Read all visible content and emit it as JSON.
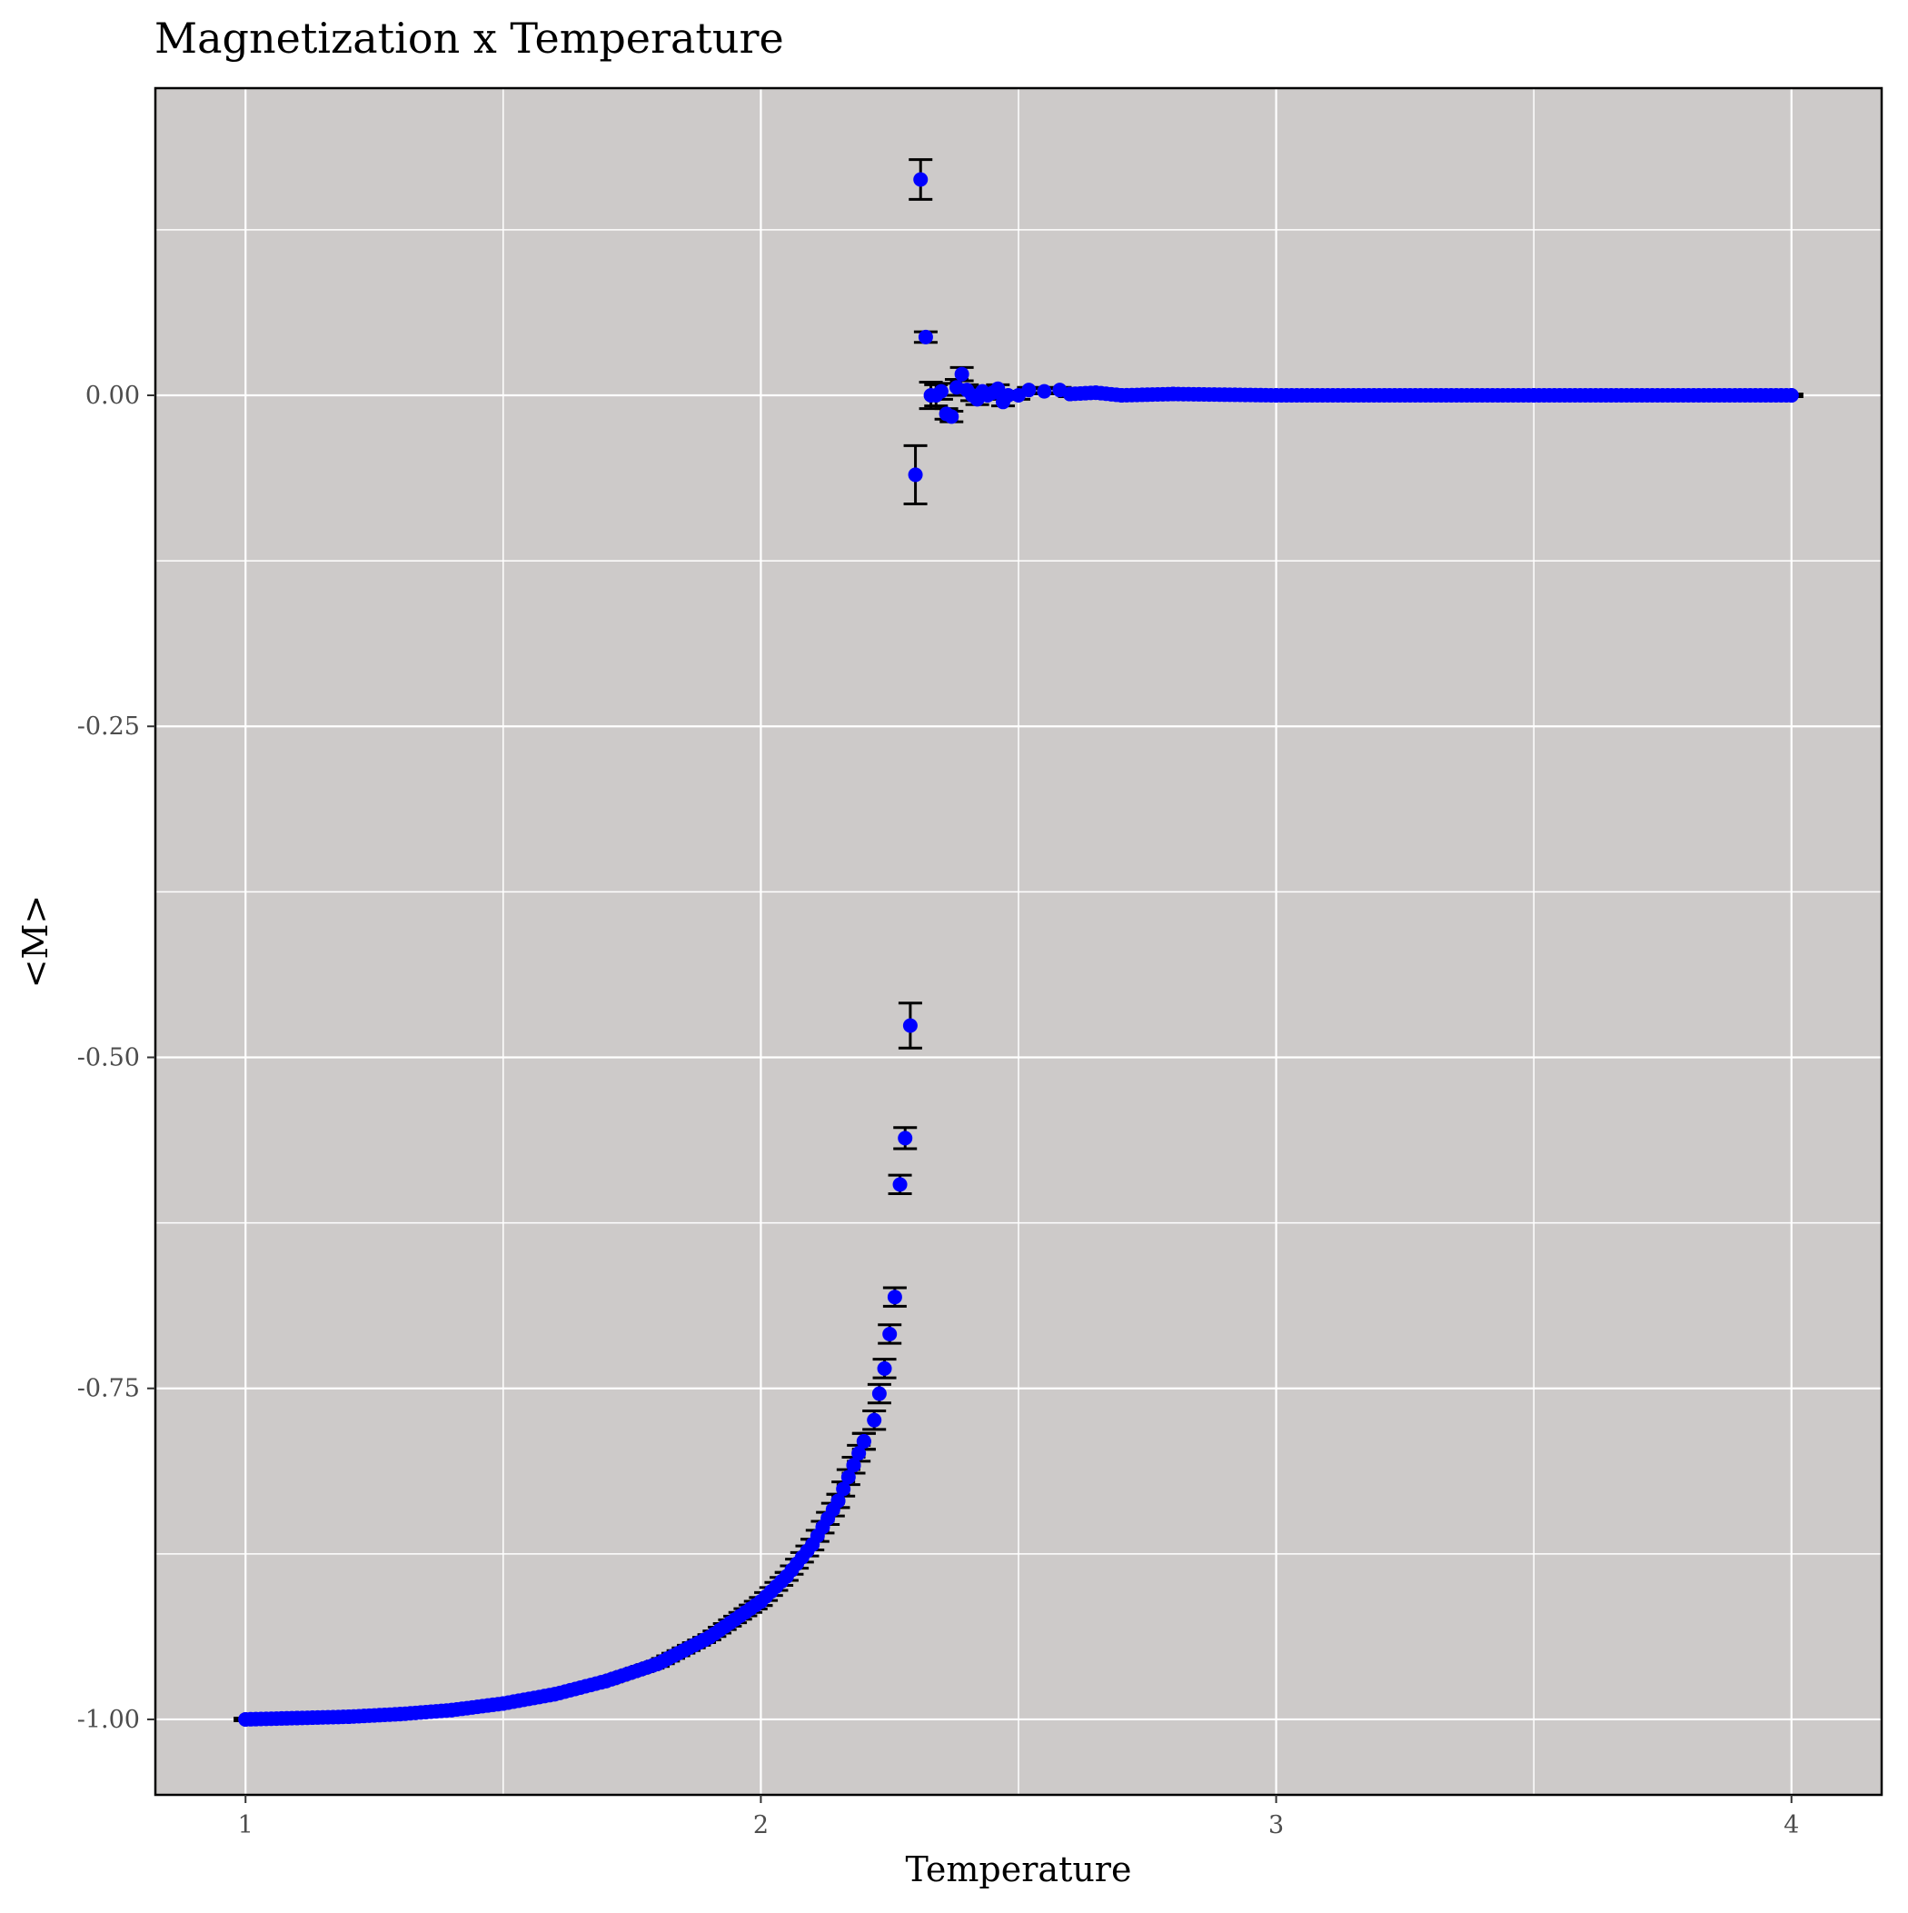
{
  "chart_data": {
    "type": "scatter",
    "title": "Magnetization x Temperature",
    "xlabel": "Temperature",
    "ylabel": "<M>",
    "xlim": [
      0.825,
      4.175
    ],
    "ylim": [
      -1.057,
      0.232
    ],
    "x_ticks": [
      1,
      2,
      3,
      4
    ],
    "x_tick_labels": [
      "1",
      "2",
      "3",
      "4"
    ],
    "y_ticks": [
      -1.0,
      -0.75,
      -0.5,
      -0.25,
      0.0
    ],
    "y_tick_labels": [
      "-1.00",
      "-0.75",
      "-0.50",
      "-0.25",
      "0.00"
    ],
    "x_minor_gridlines": [
      1.5,
      2.5,
      3.5
    ],
    "y_minor_gridlines": [
      -0.875,
      -0.625,
      -0.375,
      -0.125,
      0.125
    ],
    "grid": true,
    "legend": "none",
    "colors": {
      "panel_background": "#cdcac9",
      "grid": "#ffffff",
      "points": "#0000ff",
      "error_bars": "#000000"
    },
    "series": [
      {
        "marker": "point-with-error-bars",
        "smooth_region": {
          "description_of_points": "dense points from T=1 to T=2.2 following a smooth curve",
          "x_start": 1.0,
          "x_end": 2.2,
          "step": 0.01
        },
        "points": [
          {
            "x": 1.0,
            "y": -1.0,
            "err": 0.001
          },
          {
            "x": 1.1,
            "y": -0.999,
            "err": 0.001
          },
          {
            "x": 1.2,
            "y": -0.998,
            "err": 0.001
          },
          {
            "x": 1.3,
            "y": -0.996,
            "err": 0.001
          },
          {
            "x": 1.4,
            "y": -0.993,
            "err": 0.001
          },
          {
            "x": 1.5,
            "y": -0.988,
            "err": 0.001
          },
          {
            "x": 1.6,
            "y": -0.981,
            "err": 0.001
          },
          {
            "x": 1.7,
            "y": -0.971,
            "err": 0.002
          },
          {
            "x": 1.8,
            "y": -0.958,
            "err": 0.002
          },
          {
            "x": 1.9,
            "y": -0.938,
            "err": 0.002
          },
          {
            "x": 2.0,
            "y": -0.911,
            "err": 0.003
          },
          {
            "x": 2.05,
            "y": -0.892,
            "err": 0.003
          },
          {
            "x": 2.1,
            "y": -0.868,
            "err": 0.004
          },
          {
            "x": 2.15,
            "y": -0.835,
            "err": 0.005
          },
          {
            "x": 2.18,
            "y": -0.808,
            "err": 0.006
          },
          {
            "x": 2.2,
            "y": -0.79,
            "err": 0.006
          },
          {
            "x": 2.22,
            "y": -0.774,
            "err": 0.007
          },
          {
            "x": 2.23,
            "y": -0.754,
            "err": 0.007
          },
          {
            "x": 2.24,
            "y": -0.735,
            "err": 0.007
          },
          {
            "x": 2.25,
            "y": -0.709,
            "err": 0.007
          },
          {
            "x": 2.26,
            "y": -0.681,
            "err": 0.007
          },
          {
            "x": 2.27,
            "y": -0.596,
            "err": 0.007
          },
          {
            "x": 2.28,
            "y": -0.561,
            "err": 0.008
          },
          {
            "x": 2.29,
            "y": -0.476,
            "err": 0.017
          },
          {
            "x": 2.3,
            "y": -0.06,
            "err": 0.022
          },
          {
            "x": 2.31,
            "y": 0.163,
            "err": 0.015
          },
          {
            "x": 2.32,
            "y": 0.044,
            "err": 0.004
          },
          {
            "x": 2.33,
            "y": 0.0,
            "err": 0.01
          },
          {
            "x": 2.34,
            "y": 0.0,
            "err": 0.008
          },
          {
            "x": 2.35,
            "y": 0.003,
            "err": 0.006
          },
          {
            "x": 2.36,
            "y": -0.014,
            "err": 0.004
          },
          {
            "x": 2.37,
            "y": -0.016,
            "err": 0.004
          },
          {
            "x": 2.38,
            "y": 0.006,
            "err": 0.006
          },
          {
            "x": 2.39,
            "y": 0.016,
            "err": 0.005
          },
          {
            "x": 2.4,
            "y": 0.004,
            "err": 0.004
          },
          {
            "x": 2.41,
            "y": 0.0,
            "err": 0.004
          },
          {
            "x": 2.42,
            "y": -0.003,
            "err": 0.004
          },
          {
            "x": 2.43,
            "y": 0.003,
            "err": 0.003
          },
          {
            "x": 2.44,
            "y": 0.0,
            "err": 0.003
          },
          {
            "x": 2.45,
            "y": 0.002,
            "err": 0.003
          },
          {
            "x": 2.46,
            "y": 0.005,
            "err": 0.003
          },
          {
            "x": 2.47,
            "y": -0.005,
            "err": 0.003
          },
          {
            "x": 2.48,
            "y": 0.0,
            "err": 0.003
          },
          {
            "x": 2.5,
            "y": 0.0,
            "err": 0.003
          },
          {
            "x": 2.52,
            "y": 0.004,
            "err": 0.002
          },
          {
            "x": 2.55,
            "y": 0.003,
            "err": 0.002
          },
          {
            "x": 2.58,
            "y": 0.004,
            "err": 0.002
          },
          {
            "x": 2.6,
            "y": 0.001,
            "err": 0.002
          },
          {
            "x": 2.65,
            "y": 0.002,
            "err": 0.001
          },
          {
            "x": 2.7,
            "y": 0.0,
            "err": 0.001
          },
          {
            "x": 2.8,
            "y": 0.001,
            "err": 0.001
          },
          {
            "x": 3.0,
            "y": 0.0,
            "err": 0.001
          },
          {
            "x": 3.5,
            "y": 0.0,
            "err": 0.001
          },
          {
            "x": 4.0,
            "y": 0.0,
            "err": 0.001
          }
        ]
      }
    ]
  }
}
